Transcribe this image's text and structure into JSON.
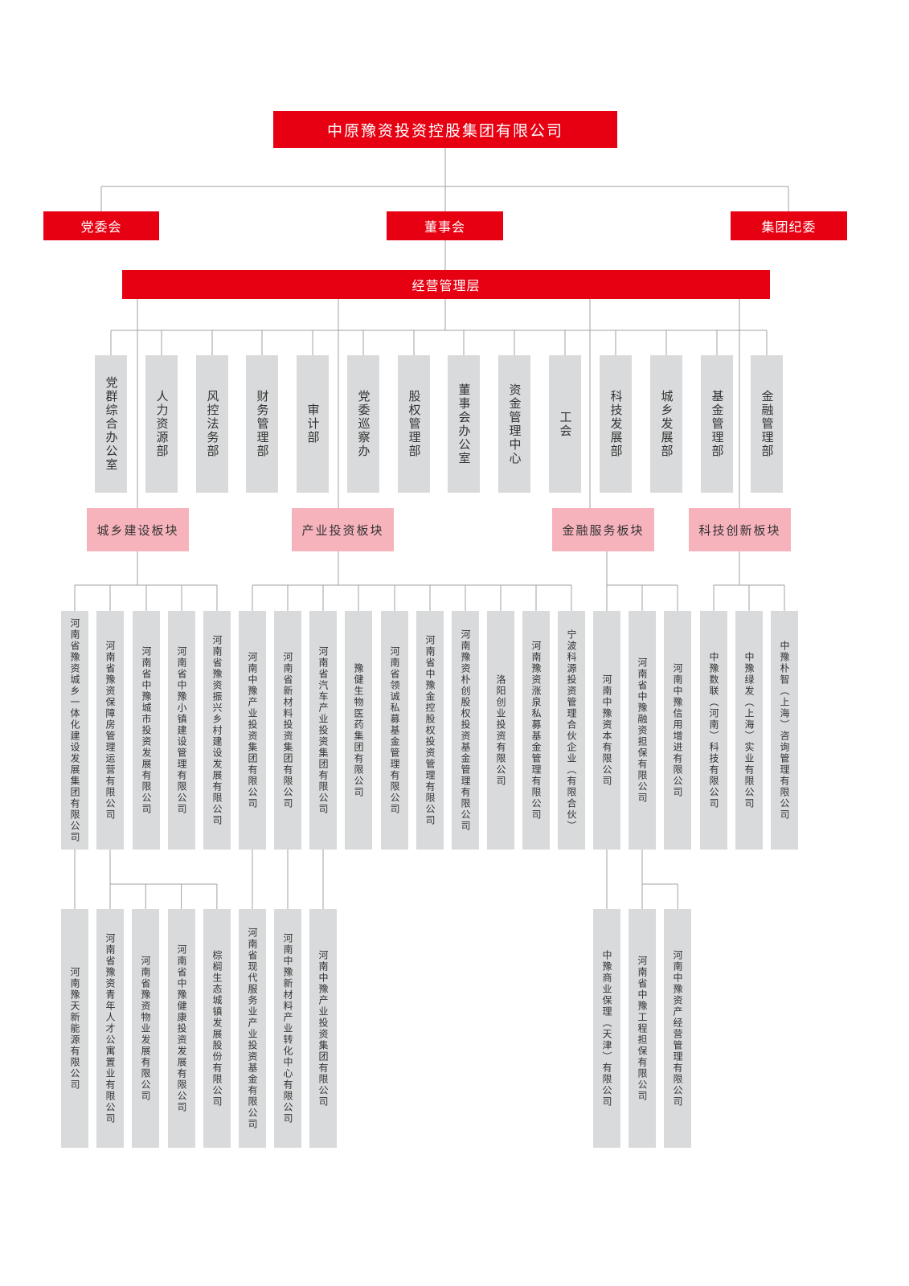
{
  "colors": {
    "primary_red": "#e60012",
    "sector_pink": "#f7b3bc",
    "unit_gray": "#d9dadb",
    "connector": "#a0a0a0"
  },
  "group": {
    "title": "中原豫资投资控股集团有限公司"
  },
  "leadership": [
    {
      "label": "党委会"
    },
    {
      "label": "董事会"
    },
    {
      "label": "集团纪委"
    }
  ],
  "management": {
    "label": "经营管理层"
  },
  "departments": [
    "党群综合办公室",
    "人力资源部",
    "风控法务部",
    "财务管理部",
    "审计部",
    "党委巡察办",
    "股权管理部",
    "董事会办公室",
    "资金管理中心",
    "工会",
    "科技发展部",
    "城乡发展部",
    "基金管理部",
    "金融管理部"
  ],
  "sectors": [
    {
      "label": "城乡建设板块",
      "companies": [
        {
          "name": "河南省豫资城乡一体化建设发展集团有限公司",
          "subsidiaries": [
            "河南豫天新能源有限公司"
          ]
        },
        {
          "name": "河南省豫资保障房管理运营有限公司",
          "subsidiaries": [
            "河南省豫资青年人才公寓置业有限公司",
            "河南省豫资物业发展有限公司",
            "河南省中豫健康投资发展有限公司",
            "棕榈生态城镇发展股份有限公司"
          ]
        },
        {
          "name": "河南省中豫城市投资发展有限公司",
          "subsidiaries": []
        },
        {
          "name": "河南省中豫小镇建设管理有限公司",
          "subsidiaries": []
        },
        {
          "name": "河南省豫资振兴乡村建设发展有限公司",
          "subsidiaries": []
        }
      ]
    },
    {
      "label": "产业投资板块",
      "companies": [
        {
          "name": "河南中豫产业投资集团有限公司",
          "subsidiaries": [
            "河南省现代服务业产业投资基金有限公司"
          ]
        },
        {
          "name": "河南省新材料投资集团有限公司",
          "subsidiaries": [
            "河南中豫新材料产业转化中心有限公司"
          ]
        },
        {
          "name": "河南省汽车产业投资集团有限公司",
          "subsidiaries": [
            "河南中豫产业投资集团有限公司"
          ]
        },
        {
          "name": "豫健生物医药集团有限公司",
          "subsidiaries": []
        },
        {
          "name": "河南省领诚私募基金管理有限公司",
          "subsidiaries": []
        },
        {
          "name": "河南省中豫金控股权投资管理有限公司",
          "subsidiaries": []
        },
        {
          "name": "河南豫资朴创股权投资基金管理有限公司",
          "subsidiaries": []
        },
        {
          "name": "洛阳创业投资有限公司",
          "subsidiaries": []
        },
        {
          "name": "河南豫资涨泉私募基金管理有限公司",
          "subsidiaries": []
        },
        {
          "name": "宁波科源投资管理合伙企业（有限合伙）",
          "subsidiaries": []
        }
      ]
    },
    {
      "label": "金融服务板块",
      "companies": [
        {
          "name": "河南中豫资本有限公司",
          "subsidiaries": [
            "中豫商业保理（天津）有限公司"
          ]
        },
        {
          "name": "河南省中豫融资担保有限公司",
          "subsidiaries": [
            "河南省中豫工程担保有限公司",
            "河南中豫资产经营管理有限公司"
          ]
        },
        {
          "name": "河南中豫信用增进有限公司",
          "subsidiaries": []
        }
      ]
    },
    {
      "label": "科技创新板块",
      "companies": [
        {
          "name": "中豫数联（河南）科技有限公司",
          "subsidiaries": []
        },
        {
          "name": "中豫绿发（上海）实业有限公司",
          "subsidiaries": []
        },
        {
          "name": "中豫朴智（上海）咨询管理有限公司",
          "subsidiaries": []
        }
      ]
    }
  ]
}
